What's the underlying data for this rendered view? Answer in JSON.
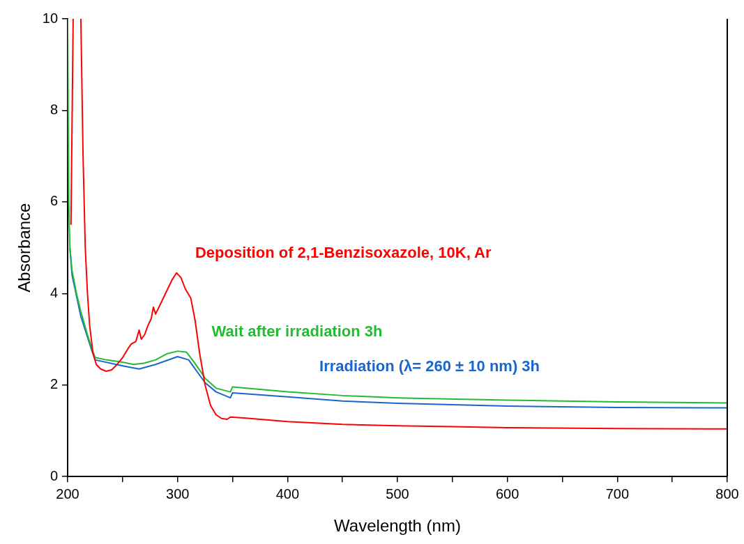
{
  "chart_data": {
    "type": "line",
    "xlabel": "Wavelength (nm)",
    "ylabel": "Absorbance",
    "xlim": [
      200,
      800
    ],
    "ylim": [
      0,
      10
    ],
    "xticks": [
      200,
      {
        "value": 250,
        "label": null
      },
      300,
      {
        "value": 350,
        "label": null
      },
      400,
      {
        "value": 450,
        "label": null
      },
      500,
      {
        "value": 550,
        "label": null
      },
      600,
      {
        "value": 650,
        "label": null
      },
      700,
      {
        "value": 750,
        "label": null
      },
      800
    ],
    "yticks": [
      0,
      2,
      4,
      6,
      8,
      10
    ],
    "grid": false,
    "legend": false,
    "marker": "none",
    "line_style": "solid",
    "series": [
      {
        "name": "Deposition of 2,1-Benzisoxazole, 10K, Ar",
        "color": "#ff0000",
        "x": [
          203,
          205,
          206,
          212,
          214,
          216,
          218,
          220,
          223,
          226,
          230,
          235,
          240,
          245,
          250,
          255,
          258,
          262,
          265,
          267,
          270,
          273,
          276,
          278,
          280,
          285,
          290,
          295,
          299,
          303,
          307,
          312,
          316,
          320,
          325,
          330,
          335,
          340,
          345,
          348,
          360,
          400,
          450,
          500,
          550,
          600,
          700,
          800
        ],
        "values": [
          5.5,
          10,
          null,
          10,
          7,
          5,
          4,
          3.3,
          2.7,
          2.45,
          2.35,
          2.3,
          2.33,
          2.45,
          2.6,
          2.8,
          2.9,
          2.95,
          3.2,
          3.0,
          3.1,
          3.3,
          3.45,
          3.7,
          3.55,
          3.8,
          4.05,
          4.3,
          4.45,
          4.35,
          4.1,
          3.9,
          3.4,
          2.7,
          2.0,
          1.55,
          1.35,
          1.27,
          1.25,
          1.3,
          1.28,
          1.2,
          1.14,
          1.11,
          1.09,
          1.07,
          1.05,
          1.04
        ]
      },
      {
        "name": "Wait after irradiation 3h",
        "color": "#22bb33",
        "x": [
          200,
          201,
          202,
          204,
          208,
          212,
          218,
          222,
          225,
          235,
          250,
          260,
          270,
          280,
          290,
          300,
          308,
          315,
          325,
          335,
          348,
          350,
          400,
          450,
          500,
          600,
          700,
          800
        ],
        "values": [
          10,
          6,
          5.0,
          4.5,
          4.0,
          3.6,
          3.1,
          2.8,
          2.6,
          2.55,
          2.5,
          2.45,
          2.48,
          2.55,
          2.68,
          2.74,
          2.72,
          2.5,
          2.15,
          1.93,
          1.85,
          1.96,
          1.85,
          1.77,
          1.72,
          1.67,
          1.63,
          1.61
        ]
      },
      {
        "name": "Irradiation (λ= 260 ± 10 nm) 3h",
        "color": "#1a66cc",
        "x": [
          202,
          204,
          212,
          222,
          225,
          250,
          265,
          280,
          300,
          310,
          325,
          335,
          348,
          350,
          400,
          450,
          500,
          600,
          700,
          800
        ],
        "values": [
          5.0,
          4.4,
          3.5,
          2.75,
          2.55,
          2.42,
          2.35,
          2.45,
          2.62,
          2.55,
          2.05,
          1.85,
          1.72,
          1.83,
          1.74,
          1.65,
          1.6,
          1.54,
          1.51,
          1.5
        ]
      }
    ]
  }
}
